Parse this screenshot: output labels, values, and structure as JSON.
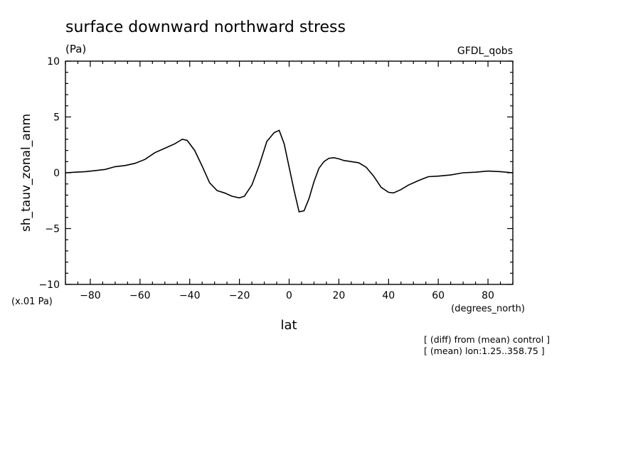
{
  "chart_data": {
    "type": "line",
    "title": "surface downward northward stress",
    "units": "(Pa)",
    "model": "GFDL_qobs",
    "xlabel": "lat",
    "xunits": "(degrees_north)",
    "ylabel": "sh_tauv_zonal_anm",
    "yscale_label": "(x.01 Pa)",
    "xlim": [
      -90,
      90
    ],
    "ylim": [
      -10,
      10
    ],
    "xticks": [
      -80,
      -60,
      -40,
      -20,
      0,
      20,
      40,
      60,
      80
    ],
    "yticks": [
      -10,
      -5,
      0,
      5,
      10
    ],
    "xtick_labels": [
      "−80",
      "−60",
      "−40",
      "−20",
      "0",
      "20",
      "40",
      "60",
      "80"
    ],
    "ytick_labels": [
      "−10",
      "−5",
      "0",
      "5",
      "10"
    ],
    "notes": [
      "[ (diff) from (mean) control ]",
      "[ (mean) lon:1.25..358.75 ]"
    ],
    "grid": false,
    "line_color": "#000000",
    "series": [
      {
        "x": [
          -90,
          -86,
          -82,
          -78,
          -74,
          -70,
          -66,
          -62,
          -58,
          -54,
          -50,
          -46,
          -43,
          -41,
          -38,
          -35,
          -32,
          -29,
          -26,
          -23,
          -20,
          -18,
          -15,
          -12,
          -9,
          -6,
          -4,
          -2,
          0,
          2,
          4,
          6,
          8,
          10,
          12,
          14,
          16,
          18,
          20,
          22,
          25,
          28,
          31,
          34,
          37,
          40,
          42,
          45,
          48,
          52,
          56,
          60,
          65,
          70,
          75,
          80,
          85,
          90
        ],
        "y": [
          0.0,
          0.05,
          0.1,
          0.2,
          0.3,
          0.55,
          0.65,
          0.85,
          1.2,
          1.8,
          2.2,
          2.6,
          3.0,
          2.9,
          2.0,
          0.6,
          -0.9,
          -1.6,
          -1.8,
          -2.1,
          -2.25,
          -2.1,
          -1.1,
          0.7,
          2.8,
          3.6,
          3.8,
          2.6,
          0.5,
          -1.6,
          -3.5,
          -3.4,
          -2.3,
          -0.8,
          0.4,
          1.0,
          1.3,
          1.35,
          1.25,
          1.1,
          1.0,
          0.9,
          0.5,
          -0.3,
          -1.3,
          -1.75,
          -1.8,
          -1.5,
          -1.1,
          -0.7,
          -0.35,
          -0.3,
          -0.2,
          0.0,
          0.05,
          0.15,
          0.1,
          0.0
        ]
      }
    ]
  }
}
